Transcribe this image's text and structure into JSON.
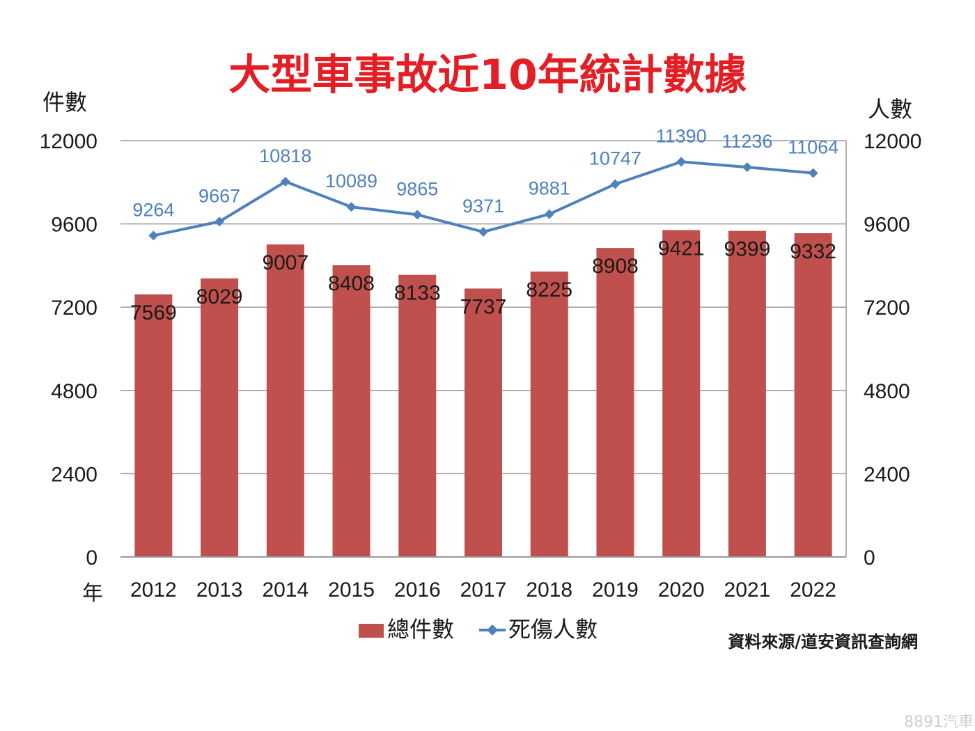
{
  "colors": {
    "title": "#e31e24",
    "bar": "#c0504d",
    "line": "#4f81bd",
    "line_label": "#4f81bd",
    "grid": "#9a9a9a",
    "text": "#1a1a1a"
  },
  "chart_data": {
    "type": "bar",
    "title": "大型車事故近10年統計數據",
    "xlabel": "年",
    "ylabel": "件數",
    "y2label": "人數",
    "categories": [
      "2012",
      "2013",
      "2014",
      "2015",
      "2016",
      "2017",
      "2018",
      "2019",
      "2020",
      "2021",
      "2022"
    ],
    "ylim": [
      0,
      12000
    ],
    "y2lim": [
      0,
      12000
    ],
    "yticks": [
      "0",
      "2400",
      "4800",
      "7200",
      "9600",
      "12000"
    ],
    "y2ticks": [
      "0",
      "2400",
      "4800",
      "7200",
      "9600",
      "12000"
    ],
    "grid": true,
    "series": [
      {
        "name": "總件數",
        "kind": "bar",
        "axis": "left",
        "values": [
          7569,
          8029,
          9007,
          8408,
          8133,
          7737,
          8225,
          8908,
          9421,
          9399,
          9332
        ]
      },
      {
        "name": "死傷人數",
        "kind": "line",
        "axis": "right",
        "marker": "diamond",
        "values": [
          9264,
          9667,
          10818,
          10089,
          9865,
          9371,
          9881,
          10747,
          11390,
          11236,
          11064
        ]
      }
    ],
    "legend": "bottom-center"
  },
  "source": "資料來源/道安資訊查詢網",
  "watermark": "8891汽車"
}
